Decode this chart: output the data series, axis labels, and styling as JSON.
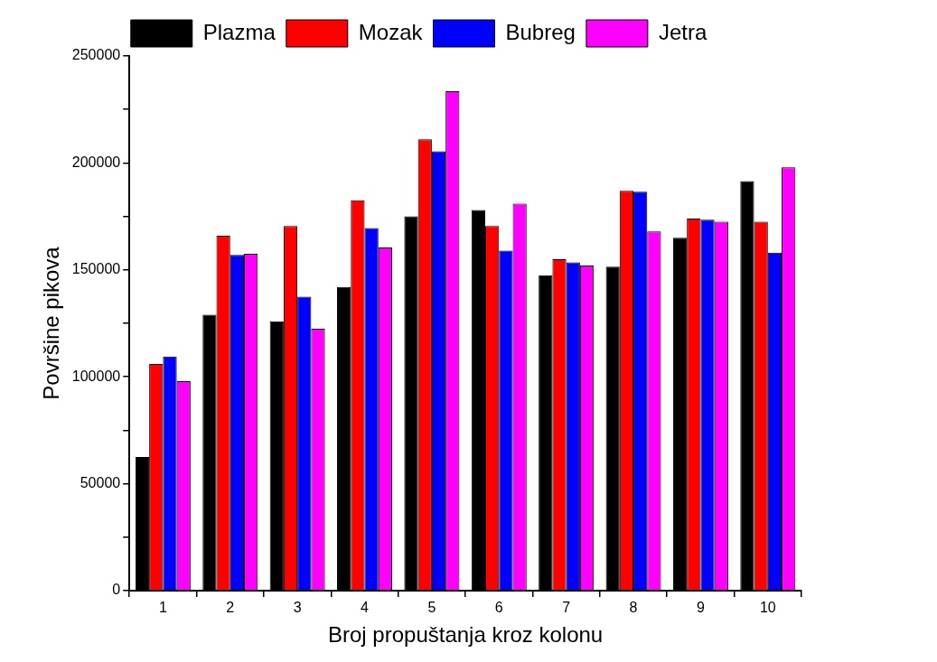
{
  "chart_data": {
    "type": "bar",
    "xlabel": "Broj propuštanja kroz kolonu",
    "ylabel": "Površine pikova",
    "categories": [
      "1",
      "2",
      "3",
      "4",
      "5",
      "6",
      "7",
      "8",
      "9",
      "10"
    ],
    "series": [
      {
        "name": "Plazma",
        "color": "#000000",
        "values": [
          62500,
          129000,
          126000,
          142000,
          175000,
          178000,
          147500,
          151500,
          165000,
          191500
        ]
      },
      {
        "name": "Mozak",
        "color": "#ff0000",
        "values": [
          106000,
          166000,
          170500,
          182500,
          211000,
          170500,
          155000,
          187000,
          174000,
          172500
        ]
      },
      {
        "name": "Bubreg",
        "color": "#0000ff",
        "values": [
          109500,
          157000,
          137500,
          169500,
          205500,
          159000,
          153500,
          186500,
          173500,
          158000
        ]
      },
      {
        "name": "Jetra",
        "color": "#ff00ff",
        "values": [
          98000,
          157500,
          122500,
          160500,
          233500,
          181000,
          152000,
          168000,
          172500,
          198000
        ]
      }
    ],
    "ylim": [
      0,
      250000
    ],
    "yticks": [
      0,
      {
        "value": 25000,
        "label": null
      },
      50000,
      {
        "value": 75000,
        "label": null
      },
      100000,
      {
        "value": 125000,
        "label": null
      },
      150000,
      {
        "value": 175000,
        "label": null
      },
      200000,
      {
        "value": 225000,
        "label": null
      },
      250000
    ],
    "grid": false,
    "legend": "top"
  }
}
